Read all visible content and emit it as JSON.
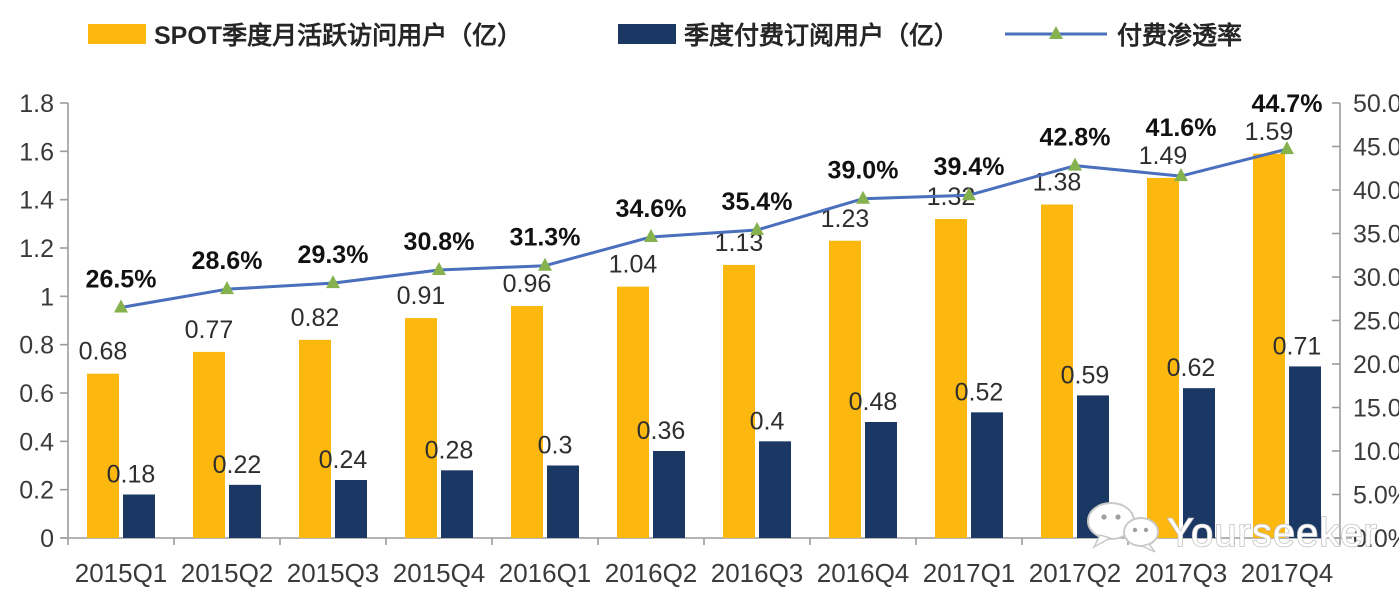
{
  "legend": {
    "mau": {
      "label": "SPOT季度月活跃访问用户（亿）",
      "color": "#FCB80F"
    },
    "subs": {
      "label": "季度付费订阅用户（亿）",
      "color": "#1B3764"
    },
    "penetration": {
      "label": "付费渗透率",
      "line_color": "#4A6FBD",
      "marker_color": "#85B24F"
    }
  },
  "watermark": {
    "text": "Yourseeker",
    "icon": "wechat-icon"
  },
  "chart_data": {
    "type": "bar+line combo",
    "title": "",
    "categories": [
      "2015Q1",
      "2015Q2",
      "2015Q3",
      "2015Q4",
      "2016Q1",
      "2016Q2",
      "2016Q3",
      "2016Q4",
      "2017Q1",
      "2017Q2",
      "2017Q3",
      "2017Q4"
    ],
    "series": [
      {
        "name": "SPOT季度月活跃访问用户（亿）",
        "type": "bar",
        "axis": "left",
        "color": "#FCB80F",
        "values": [
          0.68,
          0.77,
          0.82,
          0.91,
          0.96,
          1.04,
          1.13,
          1.23,
          1.32,
          1.38,
          1.49,
          1.59
        ],
        "labels": [
          "0.68",
          "0.77",
          "0.82",
          "0.91",
          "0.96",
          "1.04",
          "1.13",
          "1.23",
          "1.32",
          "1.38",
          "1.49",
          "1.59"
        ]
      },
      {
        "name": "季度付费订阅用户（亿）",
        "type": "bar",
        "axis": "left",
        "color": "#1B3764",
        "values": [
          0.18,
          0.22,
          0.24,
          0.28,
          0.3,
          0.36,
          0.4,
          0.48,
          0.52,
          0.59,
          0.62,
          0.71
        ],
        "labels": [
          "0.18",
          "0.22",
          "0.24",
          "0.28",
          "0.3",
          "0.36",
          "0.4",
          "0.48",
          "0.52",
          "0.59",
          "0.62",
          "0.71"
        ]
      },
      {
        "name": "付费渗透率",
        "type": "line",
        "axis": "right",
        "color": "#4A6FBD",
        "marker": "triangle-up",
        "marker_color": "#85B24F",
        "values": [
          26.5,
          28.6,
          29.3,
          30.8,
          31.3,
          34.6,
          35.4,
          39.0,
          39.4,
          42.8,
          41.6,
          44.7
        ],
        "labels": [
          "26.5%",
          "28.6%",
          "29.3%",
          "30.8%",
          "31.3%",
          "34.6%",
          "35.4%",
          "39.0%",
          "39.4%",
          "42.8%",
          "41.6%",
          "44.7%"
        ]
      }
    ],
    "left_axis": {
      "min": 0,
      "max": 1.8,
      "step": 0.2,
      "ticks": [
        "0",
        "0.2",
        "0.4",
        "0.6",
        "0.8",
        "1",
        "1.2",
        "1.4",
        "1.6",
        "1.8"
      ]
    },
    "right_axis": {
      "min": 0,
      "max": 50,
      "step": 5,
      "ticks": [
        "0.0%",
        "5.0%",
        "10.0%",
        "15.0%",
        "20.0%",
        "25.0%",
        "30.0%",
        "35.0%",
        "40.0%",
        "45.0%",
        "50.0%"
      ]
    },
    "grid": false,
    "legend_position": "top"
  }
}
